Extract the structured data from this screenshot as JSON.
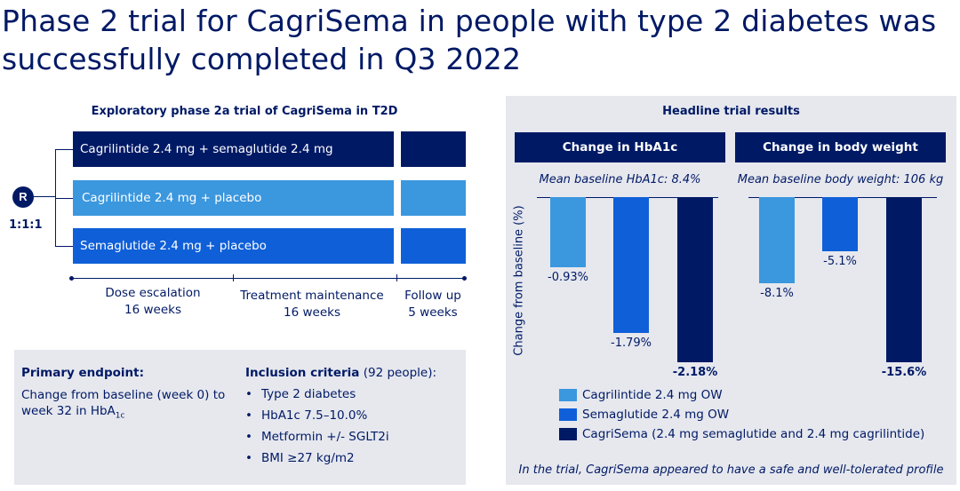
{
  "title": "Phase 2 trial for CagriSema in people with type 2 diabetes was successfully completed in Q3 2022",
  "design": {
    "heading": "Exploratory phase 2a trial of CagriSema in T2D",
    "randomisation_symbol": "R",
    "ratio": "1:1:1",
    "arms": [
      "Cagrilintide 2.4 mg + semaglutide 2.4 mg",
      "Cagrilintide 2.4 mg + placebo",
      "Semaglutide 2.4 mg  + placebo"
    ],
    "phases": [
      {
        "line1": "Dose escalation",
        "line2": "16 weeks"
      },
      {
        "line1": "Treatment maintenance",
        "line2": "16 weeks"
      },
      {
        "line1": "Follow up",
        "line2": "5 weeks"
      }
    ]
  },
  "primary_endpoint": {
    "title": "Primary endpoint:",
    "text_a": "Change from baseline (week 0) to week 32 in HbA",
    "text_sub": "1c"
  },
  "inclusion": {
    "title": "Inclusion criteria",
    "count": " (92 people):",
    "items": [
      "Type 2 diabetes",
      "HbA1c 7.5–10.0%",
      "Metformin +/- SGLT2i",
      "BMI ≥27 kg/m2"
    ]
  },
  "results": {
    "heading": "Headline trial results",
    "ylabel": "Change from baseline (%)",
    "footnote": "In the trial, CagriSema appeared to have a safe and well-tolerated profile",
    "colors": {
      "cagrilintide": "#3b97de",
      "semaglutide": "#0f5fd8",
      "cagrisema": "#001965"
    }
  },
  "chart_data": [
    {
      "type": "bar",
      "title": "Change in HbA1c",
      "subtitle": "Mean baseline HbA1c: 8.4%",
      "ylabel": "Change from baseline (%)",
      "categories": [
        "Cagrilintide 2.4 mg OW",
        "Semaglutide 2.4 mg OW",
        "CagriSema (2.4 mg semaglutide and 2.4 mg cagrilintide)"
      ],
      "values": [
        -0.93,
        -1.79,
        -2.18
      ],
      "labels": [
        "-0.93%",
        "-1.79%",
        "-2.18%"
      ],
      "ylim": [
        -2.18,
        0
      ]
    },
    {
      "type": "bar",
      "title": "Change in body weight",
      "subtitle": "Mean baseline body weight: 106 kg",
      "ylabel": "Change from baseline (%)",
      "categories": [
        "Cagrilintide 2.4 mg OW",
        "Semaglutide 2.4 mg OW",
        "CagriSema (2.4 mg semaglutide and 2.4 mg cagrilintide)"
      ],
      "values": [
        -8.1,
        -5.1,
        -15.6
      ],
      "labels": [
        "-8.1%",
        "-5.1%",
        "-15.6%"
      ],
      "ylim": [
        -15.6,
        0
      ]
    }
  ],
  "legend": [
    "Cagrilintide 2.4 mg OW",
    "Semaglutide 2.4 mg OW",
    "CagriSema (2.4 mg semaglutide and 2.4 mg cagrilintide)"
  ]
}
